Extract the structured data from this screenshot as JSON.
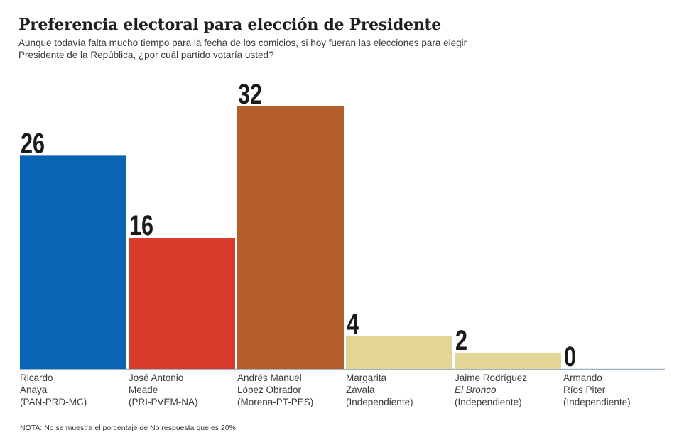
{
  "header": {
    "title": "Preferencia electoral para elección de Presidente",
    "subtitle": "Aunque todavía falta mucho tiempo para la fecha de los comicios, si hoy fueran las elecciones para elegir Presidente de la República, ¿por cuál partido votaría usted?"
  },
  "note": "NOTA: No se muestra el porcentaje de No respuesta que es 20%",
  "chart_data": {
    "type": "bar",
    "title": "Preferencia electoral para elección de Presidente",
    "xlabel": "",
    "ylabel": "",
    "ylim": [
      0,
      32
    ],
    "grid": false,
    "categories": [
      [
        "Ricardo",
        "Anaya",
        "(PAN-PRD-MC)"
      ],
      [
        "José Antonio",
        "Meade",
        "(PRI-PVEM-NA)"
      ],
      [
        "Andrés Manuel",
        "López Obrador",
        "(Morena-PT-PES)"
      ],
      [
        "Margarita",
        "Zavala",
        "(Independiente)"
      ],
      [
        "Jaime Rodríguez",
        "El Bronco",
        "(Independiente)"
      ],
      [
        "Armando",
        "Ríos Piter",
        "(Independiente)"
      ]
    ],
    "values": [
      26,
      16,
      32,
      4,
      2,
      0
    ],
    "value_labels": [
      "26",
      "16",
      "32",
      "4",
      "2",
      "0"
    ],
    "colors": [
      "#0A64B4",
      "#D93A2B",
      "#B35E2B",
      "#E2D596",
      "#E2D596",
      "#E2D596"
    ],
    "baseline_color": "#9fb3c8"
  }
}
